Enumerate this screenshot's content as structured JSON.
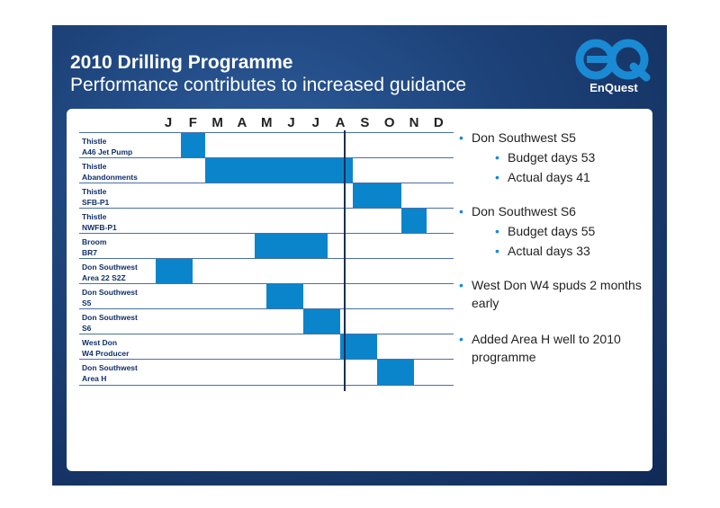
{
  "slide": {
    "title": "2010 Drilling Programme",
    "subtitle": "Performance contributes to increased guidance",
    "logo_text": "EnQuest",
    "logo_mark": "eQ"
  },
  "chart_data": {
    "type": "gantt",
    "months": [
      "J",
      "F",
      "M",
      "A",
      "M",
      "J",
      "J",
      "A",
      "S",
      "O",
      "N",
      "D"
    ],
    "tasks": [
      {
        "label_line1": "Thistle",
        "label_line2": "A46 Jet Pump",
        "start_month": 2.0,
        "end_month": 3.0
      },
      {
        "label_line1": "Thistle",
        "label_line2": "Abandonments",
        "start_month": 3.0,
        "end_month": 9.0
      },
      {
        "label_line1": "Thistle",
        "label_line2": "SFB-P1",
        "start_month": 9.0,
        "end_month": 11.0
      },
      {
        "label_line1": "Thistle",
        "label_line2": "NWFB-P1",
        "start_month": 11.0,
        "end_month": 12.0
      },
      {
        "label_line1": "Broom",
        "label_line2": "BR7",
        "start_month": 5.0,
        "end_month": 8.0
      },
      {
        "label_line1": "Don Southwest",
        "label_line2": "Area 22 S2Z",
        "start_month": 1.0,
        "end_month": 2.5
      },
      {
        "label_line1": "Don Southwest",
        "label_line2": "S5",
        "start_month": 5.5,
        "end_month": 7.0
      },
      {
        "label_line1": "Don Southwest",
        "label_line2": "S6",
        "start_month": 7.0,
        "end_month": 8.5
      },
      {
        "label_line1": "West Don",
        "label_line2": "W4 Producer",
        "start_month": 8.5,
        "end_month": 10.0
      },
      {
        "label_line1": "Don Southwest",
        "label_line2": "Area H",
        "start_month": 10.0,
        "end_month": 11.5
      }
    ],
    "current_marker_month": 8.5
  },
  "bullets": [
    {
      "level": 1,
      "text": "Don Southwest S5"
    },
    {
      "level": 2,
      "text": "Budget days 53"
    },
    {
      "level": 2,
      "text": "Actual days 41"
    },
    {
      "level": 1,
      "text": "Don Southwest S6"
    },
    {
      "level": 2,
      "text": "Budget days 55"
    },
    {
      "level": 2,
      "text": "Actual days 33"
    },
    {
      "level": 1,
      "text": "West Don W4 spuds 2 months early"
    },
    {
      "level": 1,
      "text": "Added Area H well to 2010 programme"
    }
  ],
  "colors": {
    "bar": "#0a85cc",
    "background": "#1d4279",
    "logo": "#1a8ad4"
  }
}
